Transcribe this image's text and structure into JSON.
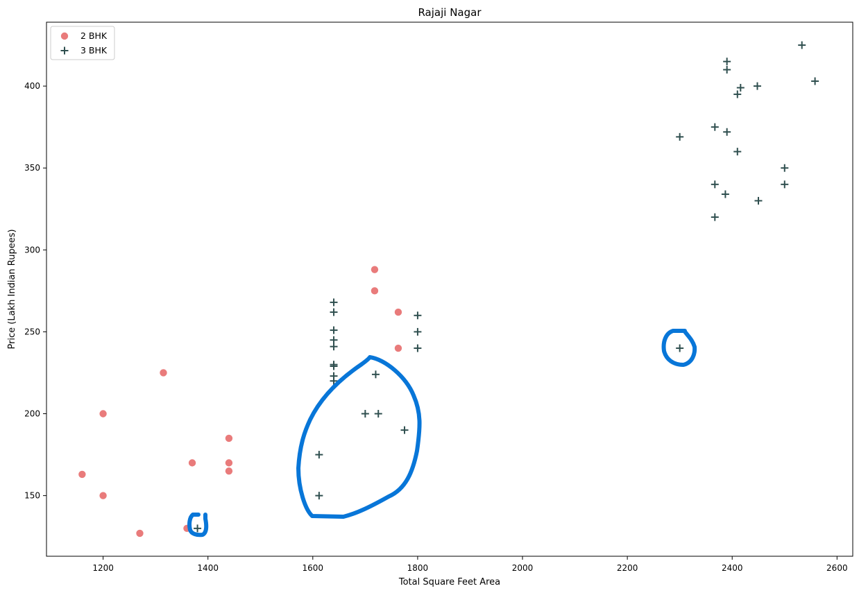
{
  "chart_data": {
    "type": "scatter",
    "title": "Rajaji Nagar",
    "xlabel": "Total Square Feet Area",
    "ylabel": "Price (Lakh Indian Rupees)",
    "xlim": [
      1092,
      2630
    ],
    "ylim": [
      113,
      439
    ],
    "xticks": [
      1200,
      1400,
      1600,
      1800,
      2000,
      2200,
      2400,
      2600
    ],
    "yticks": [
      150,
      200,
      250,
      300,
      350,
      400
    ],
    "grid": false,
    "legend_position": "top-left",
    "series": [
      {
        "name": "2 BHK",
        "marker": "circle",
        "color": "#e97b7b",
        "points": [
          [
            1160,
            163
          ],
          [
            1200,
            200
          ],
          [
            1200,
            150
          ],
          [
            1270,
            127
          ],
          [
            1315,
            225
          ],
          [
            1360,
            130
          ],
          [
            1370,
            170
          ],
          [
            1440,
            185
          ],
          [
            1440,
            170
          ],
          [
            1440,
            165
          ],
          [
            1718,
            288
          ],
          [
            1718,
            275
          ],
          [
            1763,
            262
          ],
          [
            1763,
            240
          ]
        ]
      },
      {
        "name": "3 BHK",
        "marker": "plus",
        "color": "#2f4f4f",
        "points": [
          [
            1380,
            130
          ],
          [
            1612,
            175
          ],
          [
            1612,
            150
          ],
          [
            1640,
            268
          ],
          [
            1640,
            262
          ],
          [
            1640,
            251
          ],
          [
            1640,
            245
          ],
          [
            1640,
            241
          ],
          [
            1640,
            230
          ],
          [
            1640,
            229
          ],
          [
            1640,
            223
          ],
          [
            1640,
            220
          ],
          [
            1700,
            200
          ],
          [
            1720,
            224
          ],
          [
            1725,
            200
          ],
          [
            1775,
            190
          ],
          [
            1800,
            260
          ],
          [
            1800,
            250
          ],
          [
            1800,
            240
          ],
          [
            2300,
            369
          ],
          [
            2300,
            240
          ],
          [
            2367,
            375
          ],
          [
            2367,
            340
          ],
          [
            2367,
            320
          ],
          [
            2387,
            334
          ],
          [
            2390,
            415
          ],
          [
            2390,
            410
          ],
          [
            2390,
            372
          ],
          [
            2410,
            395
          ],
          [
            2410,
            360
          ],
          [
            2416,
            399
          ],
          [
            2448,
            400
          ],
          [
            2450,
            330
          ],
          [
            2500,
            350
          ],
          [
            2500,
            340
          ],
          [
            2533,
            425
          ],
          [
            2558,
            403
          ]
        ]
      }
    ],
    "annotations": {
      "type": "hand-drawn-circles",
      "color": "#0876d8",
      "count": 3
    }
  }
}
